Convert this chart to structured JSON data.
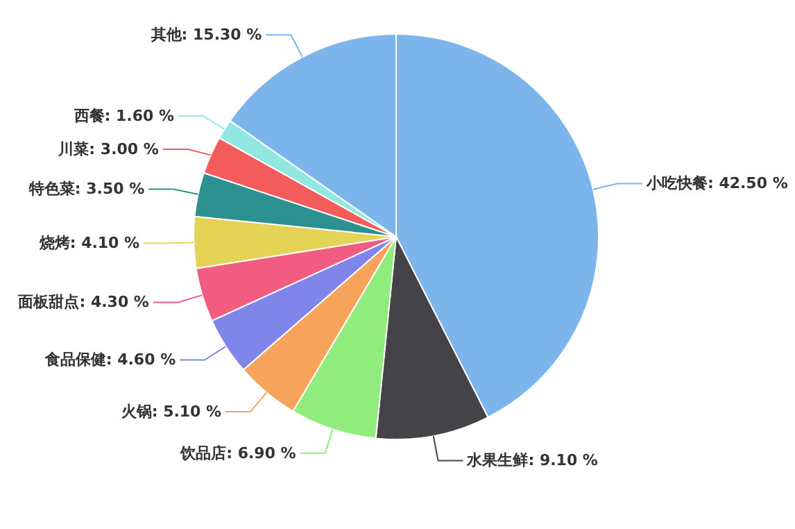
{
  "chart_data": {
    "type": "pie",
    "categories": [
      "小吃快餐",
      "水果生鲜",
      "饮品店",
      "火锅",
      "食品保健",
      "面板甜点",
      "烧烤",
      "特色菜",
      "川菜",
      "西餐",
      "其他"
    ],
    "values": [
      42.5,
      9.1,
      6.9,
      5.1,
      4.6,
      4.3,
      4.1,
      3.5,
      3.0,
      1.6,
      15.3
    ],
    "value_labels": [
      "42.50 %",
      "9.10 %",
      "6.90 %",
      "5.10 %",
      "4.60 %",
      "4.30 %",
      "4.10 %",
      "3.50 %",
      "3.00 %",
      "1.60 %",
      "15.30 %"
    ],
    "colors": [
      "#7cb5ec",
      "#434348",
      "#90ed7d",
      "#f7a35c",
      "#8085e9",
      "#f15c80",
      "#e4d354",
      "#2b908f",
      "#f45b5b",
      "#91e8e1",
      "#7cb5ec"
    ]
  }
}
